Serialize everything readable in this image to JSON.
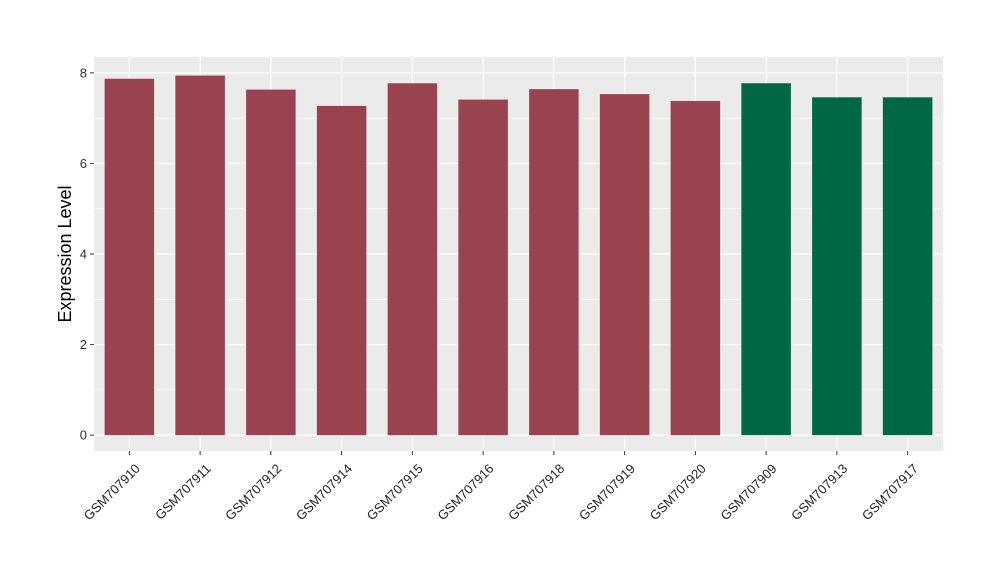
{
  "chart_data": {
    "type": "bar",
    "title": "",
    "xlabel": "",
    "ylabel": "Expression Level",
    "ylim": [
      -0.35,
      8.35
    ],
    "yticks": [
      0,
      2,
      4,
      6,
      8
    ],
    "grid": true,
    "legend": "none",
    "categories": [
      "GSM707910",
      "GSM707911",
      "GSM707912",
      "GSM707914",
      "GSM707915",
      "GSM707916",
      "GSM707918",
      "GSM707919",
      "GSM707920",
      "GSM707909",
      "GSM707913",
      "GSM707917"
    ],
    "values": [
      7.87,
      7.94,
      7.63,
      7.27,
      7.77,
      7.41,
      7.64,
      7.53,
      7.38,
      7.77,
      7.46,
      7.46
    ],
    "groups": [
      "a",
      "a",
      "a",
      "a",
      "a",
      "a",
      "a",
      "a",
      "a",
      "b",
      "b",
      "b"
    ],
    "colors": {
      "a": "#9a4350",
      "b": "#006745"
    },
    "panel_background": "#ebebeb",
    "grid_color": "#ffffff"
  }
}
